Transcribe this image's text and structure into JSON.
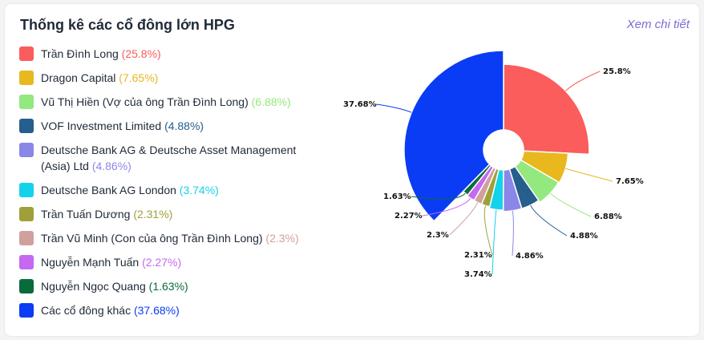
{
  "header": {
    "title": "Thống kê các cổ đông lớn HPG",
    "detail_link": "Xem chi tiết"
  },
  "chart_data": {
    "type": "pie",
    "title": "Thống kê các cổ đông lớn HPG",
    "legend_position": "left",
    "slices": [
      {
        "name": "Trần Đình Long",
        "value": 25.8,
        "label": "25.8%",
        "legend_value": "(25.8%)",
        "color": "#fb5c5c"
      },
      {
        "name": "Dragon Capital",
        "value": 7.65,
        "label": "7.65%",
        "legend_value": "(7.65%)",
        "color": "#e8b81e"
      },
      {
        "name": "Vũ Thị Hiền (Vợ của ông Trần Đình Long)",
        "value": 6.88,
        "label": "6.88%",
        "legend_value": "(6.88%)",
        "color": "#93e87e"
      },
      {
        "name": "VOF Investment Limited",
        "value": 4.88,
        "label": "4.88%",
        "legend_value": "(4.88%)",
        "color": "#265e8e"
      },
      {
        "name": "Deutsche Bank AG & Deutsche Asset Management (Asia) Ltd",
        "value": 4.86,
        "label": "4.86%",
        "legend_value": "(4.86%)",
        "color": "#8a87e8"
      },
      {
        "name": "Deutsche Bank AG London",
        "value": 3.74,
        "label": "3.74%",
        "legend_value": "(3.74%)",
        "color": "#14d2ea"
      },
      {
        "name": "Trần Tuấn Dương",
        "value": 2.31,
        "label": "2.31%",
        "legend_value": "(2.31%)",
        "color": "#a0a03a"
      },
      {
        "name": "Trần Vũ Minh (Con của ông Trần Đình Long)",
        "value": 2.3,
        "label": "2.3%",
        "legend_value": "(2.3%)",
        "color": "#d0a09c"
      },
      {
        "name": "Nguyễn Mạnh Tuấn",
        "value": 2.27,
        "label": "2.27%",
        "legend_value": "(2.27%)",
        "color": "#c668f2"
      },
      {
        "name": "Nguyễn Ngọc Quang",
        "value": 1.63,
        "label": "1.63%",
        "legend_value": "(1.63%)",
        "color": "#0a6b3a"
      },
      {
        "name": "Các cổ đông khác",
        "value": 37.68,
        "label": "37.68%",
        "legend_value": "(37.68%)",
        "color": "#0a3cf5"
      }
    ]
  }
}
